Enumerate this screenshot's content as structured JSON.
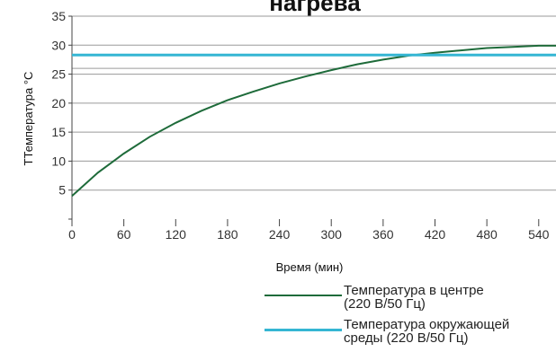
{
  "chart_data": {
    "type": "line",
    "title": "нагрева",
    "xlabel": "Время (мин)",
    "ylabel": "ТТемпература °C",
    "xlim": [
      0,
      560
    ],
    "ylim": [
      0,
      35
    ],
    "x_ticks": [
      0,
      60,
      120,
      180,
      240,
      300,
      360,
      420,
      480,
      540
    ],
    "y_ticks": [
      5,
      10,
      15,
      20,
      25,
      30,
      35
    ],
    "extra_gridlines_y": [
      26
    ],
    "grid": "horizontal",
    "legend_position": "bottom-right",
    "series": [
      {
        "name": "Температура в центре\n(220 В/50 Гц)",
        "color": "#1e6b3a",
        "x": [
          0,
          30,
          60,
          90,
          120,
          150,
          180,
          210,
          240,
          270,
          300,
          330,
          360,
          390,
          420,
          450,
          480,
          510,
          540,
          560
        ],
        "y": [
          4,
          8,
          11.3,
          14.2,
          16.6,
          18.7,
          20.5,
          22.0,
          23.4,
          24.6,
          25.7,
          26.7,
          27.5,
          28.2,
          28.7,
          29.1,
          29.5,
          29.7,
          29.9,
          29.9
        ]
      },
      {
        "name": "Температура окружающей\nсреды (220 В/50 Гц)",
        "color": "#35b6d3",
        "x": [
          0,
          560
        ],
        "y": [
          28.3,
          28.3
        ]
      }
    ]
  }
}
